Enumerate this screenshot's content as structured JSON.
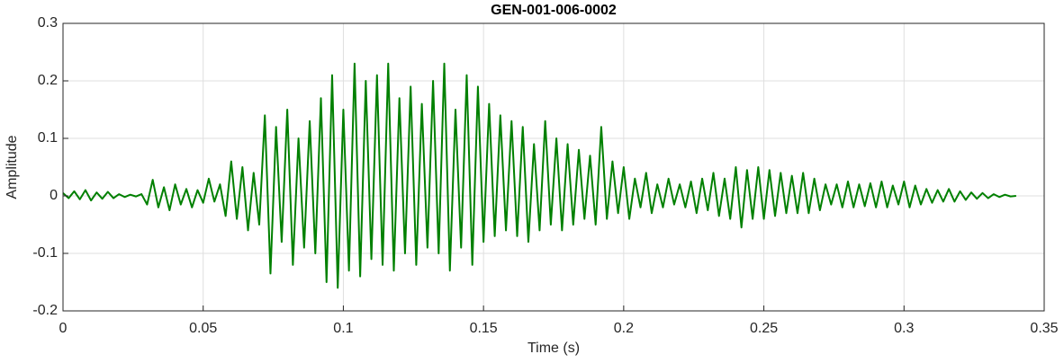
{
  "chart_data": {
    "type": "line",
    "title": "GEN-001-006-0002",
    "x_label": "Time (s)",
    "y_label": "Amplitude",
    "color": "#008000",
    "grid": true,
    "xlim": [
      0,
      0.35
    ],
    "xticks": [
      0,
      0.05,
      0.1,
      0.15,
      0.2,
      0.25,
      0.3,
      0.35
    ],
    "ylim": [
      -0.2,
      0.3
    ],
    "yticks": [
      -0.2,
      -0.1,
      0,
      0.1,
      0.2,
      0.3
    ],
    "x": [
      0,
      0.002,
      0.004,
      0.006,
      0.008,
      0.01,
      0.012,
      0.014,
      0.016,
      0.018,
      0.02,
      0.022,
      0.024,
      0.026,
      0.028,
      0.03,
      0.032,
      0.034,
      0.036,
      0.038,
      0.04,
      0.042,
      0.044,
      0.046,
      0.048,
      0.05,
      0.052,
      0.054,
      0.056,
      0.058,
      0.06,
      0.062,
      0.064,
      0.066,
      0.068,
      0.07,
      0.072,
      0.074,
      0.076,
      0.078,
      0.08,
      0.082,
      0.084,
      0.086,
      0.088,
      0.09,
      0.092,
      0.094,
      0.096,
      0.098,
      0.1,
      0.102,
      0.104,
      0.106,
      0.108,
      0.11,
      0.112,
      0.114,
      0.116,
      0.118,
      0.12,
      0.122,
      0.124,
      0.126,
      0.128,
      0.13,
      0.132,
      0.134,
      0.136,
      0.138,
      0.14,
      0.142,
      0.144,
      0.146,
      0.148,
      0.15,
      0.152,
      0.154,
      0.156,
      0.158,
      0.16,
      0.162,
      0.164,
      0.166,
      0.168,
      0.17,
      0.172,
      0.174,
      0.176,
      0.178,
      0.18,
      0.182,
      0.184,
      0.186,
      0.188,
      0.19,
      0.192,
      0.194,
      0.196,
      0.198,
      0.2,
      0.202,
      0.204,
      0.206,
      0.208,
      0.21,
      0.212,
      0.214,
      0.216,
      0.218,
      0.22,
      0.222,
      0.224,
      0.226,
      0.228,
      0.23,
      0.232,
      0.234,
      0.236,
      0.238,
      0.24,
      0.242,
      0.244,
      0.246,
      0.248,
      0.25,
      0.252,
      0.254,
      0.256,
      0.258,
      0.26,
      0.262,
      0.264,
      0.266,
      0.268,
      0.27,
      0.272,
      0.274,
      0.276,
      0.278,
      0.28,
      0.282,
      0.284,
      0.286,
      0.288,
      0.29,
      0.292,
      0.294,
      0.296,
      0.298,
      0.3,
      0.302,
      0.304,
      0.306,
      0.308,
      0.31,
      0.312,
      0.314,
      0.316,
      0.318,
      0.32,
      0.322,
      0.324,
      0.326,
      0.328,
      0.33,
      0.332,
      0.334,
      0.336,
      0.338,
      0.34
    ],
    "values": [
      0.005,
      -0.004,
      0.008,
      -0.006,
      0.01,
      -0.008,
      0.006,
      -0.005,
      0.007,
      -0.004,
      0.003,
      -0.002,
      0.002,
      -0.001,
      0.003,
      -0.015,
      0.028,
      -0.02,
      0.015,
      -0.025,
      0.02,
      -0.015,
      0.012,
      -0.02,
      0.01,
      -0.012,
      0.03,
      -0.01,
      0.02,
      -0.035,
      0.06,
      -0.04,
      0.05,
      -0.06,
      0.04,
      -0.05,
      0.14,
      -0.135,
      0.12,
      -0.08,
      0.15,
      -0.12,
      0.1,
      -0.09,
      0.13,
      -0.1,
      0.17,
      -0.15,
      0.21,
      -0.16,
      0.15,
      -0.13,
      0.23,
      -0.14,
      0.2,
      -0.11,
      0.21,
      -0.12,
      0.23,
      -0.13,
      0.17,
      -0.1,
      0.19,
      -0.12,
      0.16,
      -0.09,
      0.2,
      -0.1,
      0.23,
      -0.13,
      0.15,
      -0.09,
      0.21,
      -0.12,
      0.19,
      -0.08,
      0.16,
      -0.07,
      0.14,
      -0.06,
      0.13,
      -0.07,
      0.12,
      -0.08,
      0.09,
      -0.06,
      0.13,
      -0.05,
      0.1,
      -0.06,
      0.09,
      -0.05,
      0.08,
      -0.04,
      0.07,
      -0.05,
      0.12,
      -0.04,
      0.06,
      -0.03,
      0.05,
      -0.04,
      0.03,
      -0.02,
      0.04,
      -0.03,
      0.02,
      -0.02,
      0.03,
      -0.015,
      0.02,
      -0.02,
      0.025,
      -0.03,
      0.03,
      -0.025,
      0.04,
      -0.035,
      0.03,
      -0.04,
      0.05,
      -0.055,
      0.045,
      -0.04,
      0.05,
      -0.04,
      0.045,
      -0.035,
      0.04,
      -0.03,
      0.035,
      -0.03,
      0.04,
      -0.03,
      0.03,
      -0.025,
      0.02,
      -0.015,
      0.02,
      -0.02,
      0.025,
      -0.02,
      0.02,
      -0.018,
      0.022,
      -0.02,
      0.025,
      -0.02,
      0.018,
      -0.015,
      0.025,
      -0.02,
      0.018,
      -0.015,
      0.012,
      -0.012,
      0.01,
      -0.01,
      0.012,
      -0.01,
      0.008,
      -0.007,
      0.006,
      -0.005,
      0.005,
      -0.004,
      0.003,
      -0.002,
      0.002,
      -0.001,
      0
    ]
  }
}
